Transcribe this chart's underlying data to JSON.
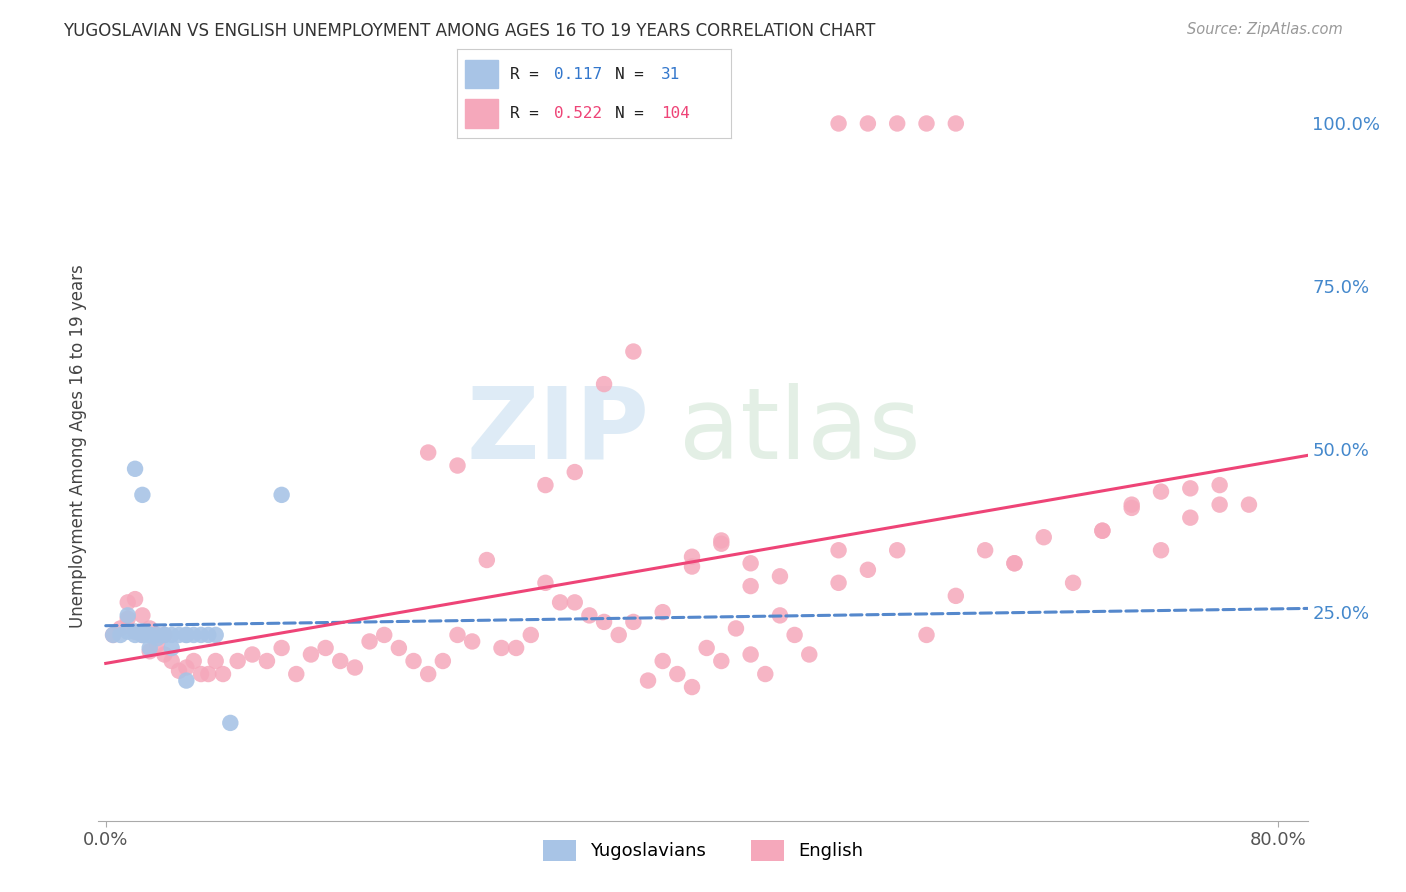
{
  "title": "YUGOSLAVIAN VS ENGLISH UNEMPLOYMENT AMONG AGES 16 TO 19 YEARS CORRELATION CHART",
  "source": "Source: ZipAtlas.com",
  "ylabel_label": "Unemployment Among Ages 16 to 19 years",
  "yug_color": "#a8c4e6",
  "eng_color": "#f5a8bb",
  "yug_line_color": "#5588cc",
  "eng_line_color": "#ee4477",
  "background_color": "#ffffff",
  "grid_color": "#cccccc",
  "xlim": [
    -0.005,
    0.82
  ],
  "ylim": [
    -0.07,
    1.08
  ],
  "xticks": [
    0.0,
    0.8
  ],
  "xtick_labels": [
    "0.0%",
    "80.0%"
  ],
  "yticks": [
    0.0,
    0.25,
    0.5,
    0.75,
    1.0
  ],
  "ytick_labels": [
    "",
    "25.0%",
    "50.0%",
    "75.0%",
    "100.0%"
  ],
  "yug_x": [
    0.005,
    0.01,
    0.015,
    0.015,
    0.02,
    0.02,
    0.025,
    0.025,
    0.025,
    0.03,
    0.03,
    0.03,
    0.035,
    0.035,
    0.04,
    0.04,
    0.045,
    0.05,
    0.055,
    0.055,
    0.06,
    0.065,
    0.07,
    0.075,
    0.02,
    0.025,
    0.03,
    0.045,
    0.085,
    0.12,
    0.055
  ],
  "yug_y": [
    0.215,
    0.215,
    0.22,
    0.245,
    0.215,
    0.22,
    0.215,
    0.215,
    0.22,
    0.215,
    0.215,
    0.215,
    0.215,
    0.21,
    0.215,
    0.215,
    0.215,
    0.215,
    0.215,
    0.215,
    0.215,
    0.215,
    0.215,
    0.215,
    0.47,
    0.43,
    0.195,
    0.195,
    0.08,
    0.43,
    0.145
  ],
  "eng_x": [
    0.005,
    0.01,
    0.015,
    0.015,
    0.02,
    0.02,
    0.025,
    0.025,
    0.03,
    0.03,
    0.035,
    0.035,
    0.04,
    0.04,
    0.045,
    0.05,
    0.055,
    0.06,
    0.065,
    0.07,
    0.075,
    0.08,
    0.09,
    0.1,
    0.11,
    0.12,
    0.13,
    0.14,
    0.15,
    0.16,
    0.17,
    0.18,
    0.19,
    0.2,
    0.21,
    0.22,
    0.23,
    0.24,
    0.25,
    0.26,
    0.27,
    0.28,
    0.29,
    0.3,
    0.31,
    0.32,
    0.33,
    0.34,
    0.35,
    0.36,
    0.37,
    0.38,
    0.39,
    0.4,
    0.41,
    0.42,
    0.43,
    0.44,
    0.45,
    0.46,
    0.47,
    0.48,
    0.5,
    0.52,
    0.54,
    0.56,
    0.58,
    0.6,
    0.62,
    0.64,
    0.66,
    0.68,
    0.7,
    0.72,
    0.74,
    0.76,
    0.78,
    0.5,
    0.52,
    0.54,
    0.56,
    0.58,
    0.3,
    0.32,
    0.22,
    0.24,
    0.4,
    0.42,
    0.44,
    0.46,
    0.5,
    0.62,
    0.68,
    0.7,
    0.72,
    0.74,
    0.76,
    0.34,
    0.36,
    0.38,
    0.4,
    0.42,
    0.44
  ],
  "eng_y": [
    0.215,
    0.225,
    0.24,
    0.265,
    0.22,
    0.27,
    0.245,
    0.215,
    0.225,
    0.19,
    0.2,
    0.215,
    0.185,
    0.215,
    0.175,
    0.16,
    0.165,
    0.175,
    0.155,
    0.155,
    0.175,
    0.155,
    0.175,
    0.185,
    0.175,
    0.195,
    0.155,
    0.185,
    0.195,
    0.175,
    0.165,
    0.205,
    0.215,
    0.195,
    0.175,
    0.155,
    0.175,
    0.215,
    0.205,
    0.33,
    0.195,
    0.195,
    0.215,
    0.295,
    0.265,
    0.265,
    0.245,
    0.235,
    0.215,
    0.235,
    0.145,
    0.175,
    0.155,
    0.135,
    0.195,
    0.175,
    0.225,
    0.185,
    0.155,
    0.245,
    0.215,
    0.185,
    0.295,
    0.315,
    0.345,
    0.215,
    0.275,
    0.345,
    0.325,
    0.365,
    0.295,
    0.375,
    0.415,
    0.345,
    0.395,
    0.445,
    0.415,
    1.0,
    1.0,
    1.0,
    1.0,
    1.0,
    0.445,
    0.465,
    0.495,
    0.475,
    0.335,
    0.355,
    0.325,
    0.305,
    0.345,
    0.325,
    0.375,
    0.41,
    0.435,
    0.44,
    0.415,
    0.6,
    0.65,
    0.25,
    0.32,
    0.36,
    0.29
  ]
}
